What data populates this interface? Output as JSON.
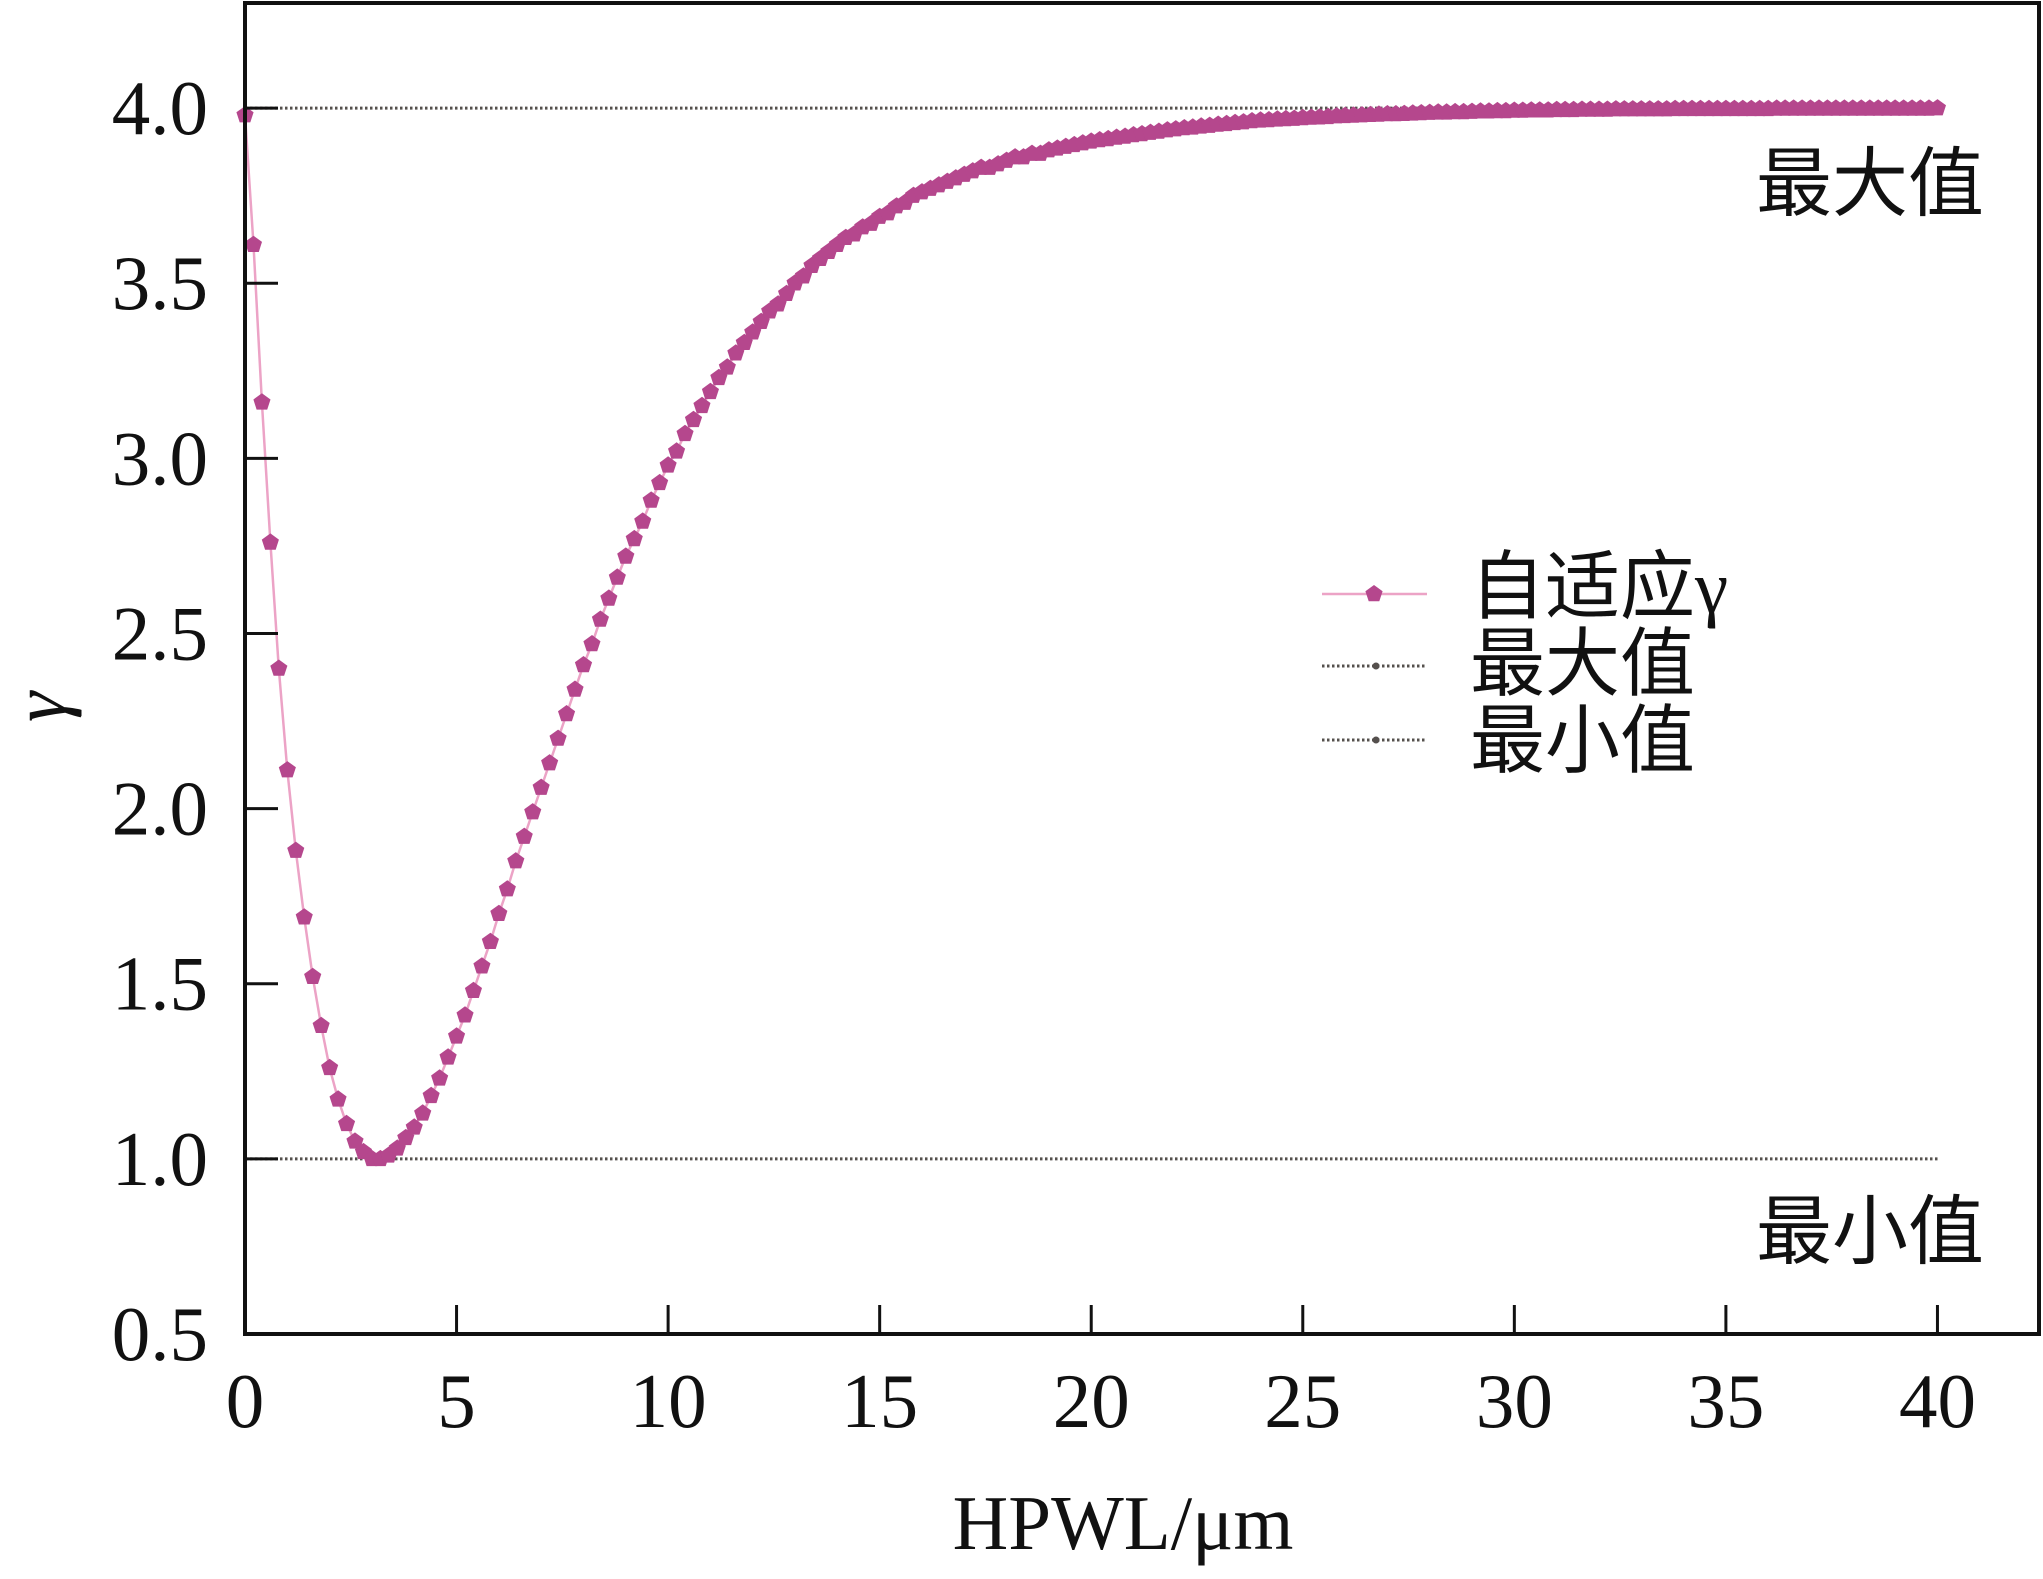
{
  "chart_data": {
    "type": "line",
    "xlabel": "HPWL/μm",
    "ylabel": "γ",
    "xlim": [
      0,
      42.4
    ],
    "ylim": [
      0.5,
      4.3
    ],
    "xticks": [
      "0",
      "5",
      "10",
      "15",
      "20",
      "25",
      "30",
      "35",
      "40"
    ],
    "yticks": [
      "0.5",
      "1.0",
      "1.5",
      "2.0",
      "2.5",
      "3.0",
      "3.5",
      "4.0"
    ],
    "grid": false,
    "legend": {
      "position": "center-right"
    },
    "annotations": [
      "最大值",
      "最小值"
    ],
    "series": [
      {
        "name": "自适应γ",
        "marker": "pentagon",
        "color": "#b5478d",
        "line_color": "#eca3c6",
        "x": [
          0,
          0.2,
          0.4,
          0.6,
          0.8,
          1,
          1.2,
          1.4,
          1.6,
          1.8,
          2,
          2.2,
          2.4,
          2.6,
          2.8,
          3,
          3.2,
          3.4,
          3.6,
          3.8,
          4,
          4.2,
          4.4,
          4.6,
          4.8,
          5,
          5.2,
          5.4,
          5.6,
          5.8,
          6,
          6.2,
          6.4,
          6.6,
          6.8,
          7,
          7.2,
          7.4,
          7.6,
          7.8,
          8,
          8.2,
          8.4,
          8.6,
          8.8,
          9,
          9.2,
          9.4,
          9.6,
          9.8,
          10,
          10.2,
          10.4,
          10.6,
          10.8,
          11,
          11.2,
          11.4,
          11.6,
          11.8,
          12,
          12.2,
          12.4,
          12.6,
          12.8,
          13,
          13.2,
          13.4,
          13.6,
          13.8,
          14,
          14.2,
          14.4,
          14.6,
          14.8,
          15,
          15.2,
          15.4,
          15.6,
          15.8,
          16,
          16.2,
          16.4,
          16.6,
          16.8,
          17,
          17.2,
          17.4,
          17.6,
          17.8,
          18,
          18.2,
          18.4,
          18.6,
          18.8,
          19,
          19.2,
          19.4,
          19.6,
          19.8,
          20,
          20.2,
          20.4,
          20.6,
          20.8,
          21,
          21.2,
          21.4,
          21.6,
          21.8,
          22,
          22.2,
          22.4,
          22.6,
          22.8,
          23,
          23.2,
          23.4,
          23.6,
          23.8,
          24,
          24.2,
          24.4,
          24.6,
          24.8,
          25,
          25.2,
          25.4,
          25.6,
          25.8,
          26,
          26.2,
          26.4,
          26.6,
          26.8,
          27,
          27.2,
          27.4,
          27.6,
          27.8,
          28,
          28.2,
          28.4,
          28.6,
          28.8,
          29,
          29.2,
          29.4,
          29.6,
          29.8,
          30,
          30.2,
          30.4,
          30.6,
          30.8,
          31,
          31.2,
          31.4,
          31.6,
          31.8,
          32,
          32.2,
          32.4,
          32.6,
          32.8,
          33,
          33.2,
          33.4,
          33.6,
          33.8,
          34,
          34.2,
          34.4,
          34.6,
          34.8,
          35,
          35.2,
          35.4,
          35.6,
          35.8,
          36,
          36.2,
          36.4,
          36.6,
          36.8,
          37,
          37.2,
          37.4,
          37.6,
          37.8,
          38,
          38.2,
          38.4,
          38.6,
          38.8,
          39,
          39.2,
          39.4,
          39.6,
          39.8,
          40
        ],
        "y": [
          3.98,
          3.61,
          3.16,
          2.76,
          2.4,
          2.11,
          1.88,
          1.69,
          1.52,
          1.38,
          1.26,
          1.17,
          1.1,
          1.05,
          1.02,
          1.0,
          1.0,
          1.01,
          1.03,
          1.06,
          1.09,
          1.13,
          1.18,
          1.23,
          1.29,
          1.35,
          1.41,
          1.48,
          1.55,
          1.62,
          1.7,
          1.77,
          1.85,
          1.92,
          1.99,
          2.06,
          2.13,
          2.2,
          2.27,
          2.34,
          2.41,
          2.47,
          2.54,
          2.6,
          2.66,
          2.72,
          2.77,
          2.82,
          2.88,
          2.93,
          2.98,
          3.02,
          3.07,
          3.11,
          3.15,
          3.19,
          3.23,
          3.26,
          3.3,
          3.33,
          3.36,
          3.39,
          3.42,
          3.44,
          3.47,
          3.5,
          3.52,
          3.55,
          3.57,
          3.59,
          3.61,
          3.63,
          3.64,
          3.66,
          3.67,
          3.69,
          3.7,
          3.72,
          3.73,
          3.75,
          3.76,
          3.77,
          3.78,
          3.79,
          3.8,
          3.81,
          3.82,
          3.83,
          3.83,
          3.84,
          3.85,
          3.86,
          3.86,
          3.87,
          3.87,
          3.88,
          3.885,
          3.89,
          3.895,
          3.9,
          3.905,
          3.909,
          3.912,
          3.916,
          3.919,
          3.923,
          3.926,
          3.93,
          3.933,
          3.937,
          3.94,
          3.943,
          3.945,
          3.948,
          3.95,
          3.953,
          3.955,
          3.958,
          3.96,
          3.963,
          3.965,
          3.966,
          3.968,
          3.969,
          3.97,
          3.972,
          3.973,
          3.974,
          3.975,
          3.977,
          3.978,
          3.979,
          3.98,
          3.981,
          3.982,
          3.983,
          3.983,
          3.984,
          3.985,
          3.986,
          3.987,
          3.988,
          3.988,
          3.989,
          3.989,
          3.99,
          3.991,
          3.991,
          3.992,
          3.992,
          3.993,
          3.993,
          3.994,
          3.994,
          3.994,
          3.995,
          3.995,
          3.995,
          3.996,
          3.996,
          3.996,
          3.996,
          3.997,
          3.997,
          3.997,
          3.997,
          3.997,
          3.997,
          3.997,
          3.998,
          3.998,
          3.998,
          3.998,
          3.998,
          3.998,
          3.998,
          3.998,
          3.998,
          3.998,
          3.998,
          3.998,
          3.999,
          3.999,
          3.999,
          3.999,
          3.999,
          3.999,
          3.999,
          3.999,
          3.999,
          3.999,
          3.999,
          3.999,
          3.999,
          3.999,
          3.999,
          3.999,
          3.999,
          3.999,
          3.999,
          4.0
        ]
      },
      {
        "name": "最大值",
        "style": "dotted",
        "color": "#55504d",
        "x": [
          0,
          40
        ],
        "y": [
          4.0,
          4.0
        ]
      },
      {
        "name": "最小值",
        "style": "dotted",
        "color": "#55504d",
        "x": [
          0,
          40
        ],
        "y": [
          1.0,
          1.0
        ]
      }
    ]
  }
}
